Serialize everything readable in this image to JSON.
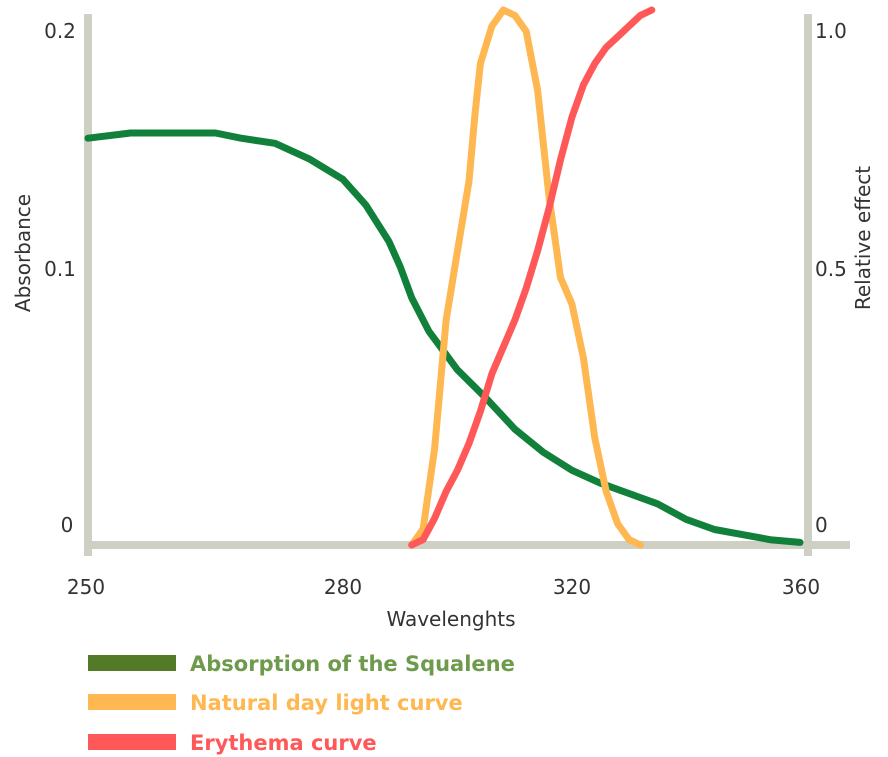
{
  "chart_data": {
    "type": "line",
    "xlabel": "Wavelenghts",
    "ylabel_left": "Absorbance",
    "ylabel_right": "Relative effect",
    "xlim": [
      250,
      360
    ],
    "ylim_left": [
      0,
      0.2
    ],
    "ylim_right": [
      0,
      1.0
    ],
    "x_ticks": [
      250,
      280,
      320,
      360
    ],
    "y_ticks_left": [
      {
        "value": 0,
        "label": "0"
      },
      {
        "value": 0.1,
        "label": "0.1"
      },
      {
        "value": 0.2,
        "label": "0.2"
      }
    ],
    "y_ticks_right": [
      {
        "value": 0,
        "label": "0"
      },
      {
        "value": 0.5,
        "label": "0.5"
      },
      {
        "value": 1.0,
        "label": "1.0"
      }
    ],
    "grid": false,
    "legend_position": "bottom-left",
    "series": [
      {
        "name": "Absorption of the Squalene",
        "axis": "left",
        "color": "#11803a",
        "legend_color": "#527a27",
        "legend_text_color": "#6e9a4c",
        "x": [
          250,
          255,
          260,
          265,
          268,
          272,
          276,
          280,
          284,
          288,
          290,
          292,
          295,
          300,
          305,
          310,
          315,
          320,
          325,
          330,
          335,
          340,
          345,
          350,
          355,
          360
        ],
        "y": [
          0.158,
          0.16,
          0.16,
          0.16,
          0.158,
          0.156,
          0.15,
          0.142,
          0.132,
          0.118,
          0.108,
          0.096,
          0.083,
          0.068,
          0.057,
          0.045,
          0.036,
          0.029,
          0.024,
          0.02,
          0.016,
          0.01,
          0.006,
          0.004,
          0.002,
          0.001
        ]
      },
      {
        "name": "Natural day light curve",
        "axis": "right",
        "color": "#ffb752",
        "legend_color": "#ffb752",
        "legend_text_color": "#ffb752",
        "x": [
          292,
          294,
          296,
          298,
          300,
          302,
          303,
          304,
          306,
          308,
          310,
          312,
          314,
          316,
          318,
          320,
          322,
          324,
          326,
          328,
          330,
          332
        ],
        "y": [
          0.0,
          0.03,
          0.18,
          0.42,
          0.55,
          0.68,
          0.8,
          0.9,
          0.97,
          1.0,
          0.99,
          0.96,
          0.85,
          0.65,
          0.5,
          0.45,
          0.35,
          0.2,
          0.1,
          0.04,
          0.01,
          0.0
        ]
      },
      {
        "name": "Erythema curve",
        "axis": "right",
        "color": "#ff5858",
        "legend_color": "#ff5858",
        "legend_text_color": "#ff5858",
        "x": [
          292,
          294,
          296,
          298,
          300,
          302,
          304,
          306,
          308,
          310,
          312,
          314,
          316,
          318,
          320,
          322,
          324,
          326,
          328,
          330,
          332,
          334
        ],
        "y": [
          0.0,
          0.01,
          0.05,
          0.1,
          0.14,
          0.19,
          0.25,
          0.32,
          0.37,
          0.42,
          0.48,
          0.55,
          0.63,
          0.72,
          0.8,
          0.86,
          0.9,
          0.93,
          0.95,
          0.97,
          0.99,
          1.0
        ]
      }
    ]
  }
}
